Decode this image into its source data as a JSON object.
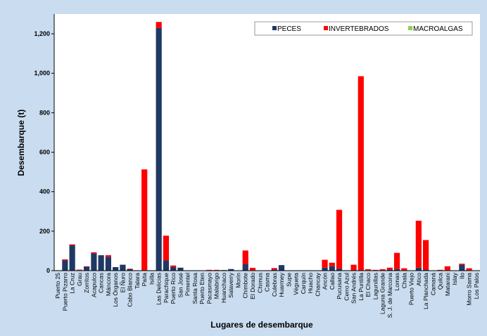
{
  "chart_data": {
    "type": "bar",
    "stacked": true,
    "title": "",
    "xlabel": "Lugares de desembarque",
    "ylabel": "Desembarque (t)",
    "ylim": [
      0,
      1300
    ],
    "yticks": [
      0,
      200,
      400,
      600,
      800,
      1000,
      1200
    ],
    "ytick_labels": [
      "0",
      "200",
      "400",
      "600",
      "800",
      "1,000",
      "1,200"
    ],
    "grid": false,
    "legend_position": "top-right",
    "colors": {
      "PECES": "#1f3864",
      "INVERTEBRADOS": "#ff0000",
      "MACROALGAS": "#92d050"
    },
    "categories": [
      "Puerto 25",
      "Puerto Pizarro",
      "La Cruz",
      "Grau",
      "Zorritos",
      "Acapulco",
      "Cancas",
      "Máncora",
      "Los Órganos",
      "El Ñuro",
      "Cabo Blanco",
      "Talara",
      "Paita",
      "Isilla",
      "Las Delicias",
      "Parachique",
      "Puerto Rico",
      "San José",
      "Pimentel",
      "Santa Rosa",
      "Puerto Eten",
      "Pacasmayo",
      "Malabrigo",
      "Huanchaco",
      "Salaverry",
      "Morín",
      "Chimbote",
      "El Dorado",
      "Chimus",
      "Casma",
      "Culebras",
      "Huarmey",
      "Supe",
      "Végueta",
      "Carquín",
      "Huacho",
      "Chancay",
      "Ancón",
      "Callao",
      "Pucusana",
      "Cerro Azul",
      "San Andrés",
      "La Puntilla",
      "El Chaco",
      "Lagunillas",
      "Laguna Grande",
      "S. J. de Marcona",
      "Lomas",
      "Chala",
      "Puerto Viejo",
      "Atico",
      "La Planchada",
      "Camaná",
      "Quilca",
      "Matarani",
      "Islay",
      "Ilo",
      "Morro Sama",
      "Los Palos"
    ],
    "series": [
      {
        "name": "PECES",
        "values": [
          2,
          52,
          128,
          3,
          20,
          88,
          78,
          70,
          18,
          30,
          8,
          0,
          0,
          0,
          1230,
          52,
          18,
          15,
          0,
          0,
          0,
          2,
          2,
          3,
          8,
          0,
          32,
          2,
          0,
          0,
          5,
          28,
          0,
          0,
          0,
          0,
          0,
          15,
          22,
          10,
          2,
          0,
          0,
          2,
          2,
          2,
          5,
          8,
          2,
          0,
          15,
          5,
          0,
          2,
          2,
          0,
          30,
          2,
          0
        ]
      },
      {
        "name": "INVERTEBRADOS",
        "values": [
          0,
          5,
          5,
          2,
          2,
          5,
          0,
          8,
          0,
          0,
          2,
          2,
          513,
          2,
          30,
          125,
          8,
          0,
          0,
          0,
          0,
          2,
          2,
          0,
          0,
          0,
          70,
          12,
          0,
          2,
          8,
          0,
          0,
          0,
          0,
          0,
          0,
          40,
          18,
          298,
          0,
          30,
          985,
          5,
          2,
          5,
          10,
          82,
          10,
          0,
          238,
          150,
          0,
          2,
          20,
          0,
          5,
          10,
          0
        ]
      },
      {
        "name": "MACROALGAS",
        "values": [
          0,
          0,
          0,
          0,
          0,
          0,
          0,
          0,
          0,
          0,
          0,
          0,
          0,
          0,
          0,
          0,
          0,
          0,
          0,
          0,
          0,
          0,
          0,
          0,
          0,
          0,
          0,
          0,
          0,
          0,
          0,
          0,
          0,
          0,
          0,
          0,
          0,
          0,
          0,
          0,
          0,
          0,
          0,
          0,
          0,
          0,
          0,
          0,
          0,
          0,
          0,
          0,
          0,
          0,
          0,
          0,
          0,
          0,
          0
        ]
      }
    ]
  }
}
